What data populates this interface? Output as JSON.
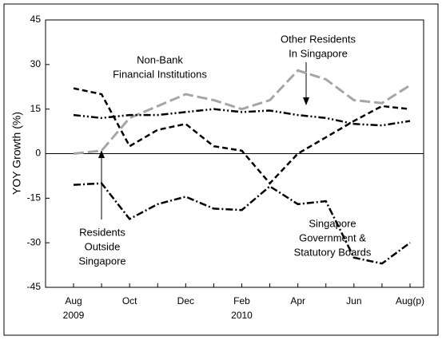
{
  "chart_data": {
    "type": "line",
    "y_label": "YOY Growth (%)",
    "categories": [
      "Aug",
      null,
      "Oct",
      null,
      "Dec",
      null,
      "Feb",
      null,
      "Apr",
      null,
      "Jun",
      null,
      "Aug(p)"
    ],
    "years": [
      {
        "index": 0,
        "label": "2009"
      },
      {
        "index": 6,
        "label": "2010"
      }
    ],
    "ylim": [
      -45,
      45
    ],
    "yticks": [
      -45,
      -30,
      -15,
      0,
      15,
      30,
      45
    ],
    "grid": false,
    "series": [
      {
        "label": [
          "Non-Bank",
          "Financial Institutions"
        ],
        "color": "#000000",
        "dash": "7,4",
        "values": [
          22,
          20,
          2.5,
          8,
          10,
          2.5,
          1,
          -10,
          0,
          5.5,
          11,
          16,
          15
        ]
      },
      {
        "label": [
          "Residents",
          "Outside",
          "Singapore"
        ],
        "color": "#a6a6a6",
        "dash": "13,5",
        "values": [
          0,
          1,
          12,
          16,
          20,
          18,
          15,
          18,
          28,
          25,
          18,
          17,
          23
        ]
      },
      {
        "label": [
          "Other Residents",
          "In Singapore"
        ],
        "color": "#000000",
        "dash": "9,3,2,3,2,3",
        "values": [
          13,
          12,
          13,
          13,
          14,
          15,
          14,
          14.5,
          13,
          12,
          10,
          9.5,
          11
        ]
      },
      {
        "label": [
          "Singapore",
          "Government &",
          "Statutory Boards"
        ],
        "color": "#000000",
        "dash": "9,3,2,3",
        "values": [
          -10.5,
          -10,
          -22,
          -17,
          -14.5,
          -18.5,
          -19,
          -11,
          -17,
          -16,
          -35,
          -37,
          -30
        ]
      }
    ]
  }
}
